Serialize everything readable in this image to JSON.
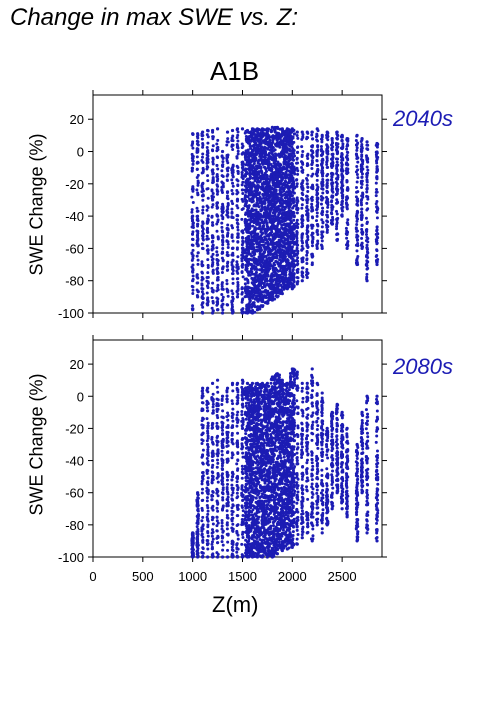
{
  "figure": {
    "title": "Change in max SWE vs. Z:",
    "scenario": "A1B",
    "xlabel": "Z(m)",
    "point_color": "#1c1cb4"
  },
  "chart_data": [
    {
      "type": "scatter",
      "period_label": "2040s",
      "ylabel": "SWE Change (%)",
      "xlim": [
        0,
        2900
      ],
      "ylim": [
        -100,
        35
      ],
      "yticks": [
        20,
        0,
        -20,
        -40,
        -60,
        -80,
        -100
      ],
      "xticks": [
        0,
        500,
        1000,
        1500,
        2000,
        2500
      ],
      "show_xtick_labels": false,
      "grid": false,
      "series": [
        {
          "points_summary": "dense vertical bands of points at each elevation; highest density 1550–2000 m",
          "x_range": [
            990,
            2900
          ],
          "y_range": [
            -100,
            15
          ],
          "points": [
            [
              1000,
              -98
            ],
            [
              1000,
              -80
            ],
            [
              1000,
              -40
            ],
            [
              1000,
              11
            ],
            [
              1050,
              -90
            ],
            [
              1050,
              -45
            ],
            [
              1050,
              11
            ],
            [
              1100,
              -100
            ],
            [
              1100,
              -60
            ],
            [
              1100,
              -20
            ],
            [
              1100,
              12
            ],
            [
              1150,
              -95
            ],
            [
              1150,
              -50
            ],
            [
              1150,
              0
            ],
            [
              1150,
              13
            ],
            [
              1200,
              -100
            ],
            [
              1200,
              -70
            ],
            [
              1200,
              -30
            ],
            [
              1200,
              13
            ],
            [
              1250,
              -98
            ],
            [
              1250,
              -40
            ],
            [
              1250,
              14
            ],
            [
              1300,
              -100
            ],
            [
              1300,
              -55
            ],
            [
              1300,
              0
            ],
            [
              1350,
              -95
            ],
            [
              1350,
              -25
            ],
            [
              1350,
              12
            ],
            [
              1400,
              -100
            ],
            [
              1400,
              -60
            ],
            [
              1400,
              -10
            ],
            [
              1400,
              13
            ],
            [
              1450,
              -90
            ],
            [
              1450,
              -30
            ],
            [
              1450,
              14
            ],
            [
              1500,
              -100
            ],
            [
              1500,
              -60
            ],
            [
              1500,
              -10
            ],
            [
              1500,
              14
            ],
            [
              1550,
              -100
            ],
            [
              1550,
              -50
            ],
            [
              1550,
              13
            ],
            [
              1600,
              -100
            ],
            [
              1600,
              -40
            ],
            [
              1600,
              14
            ],
            [
              1650,
              -98
            ],
            [
              1650,
              -30
            ],
            [
              1650,
              14
            ],
            [
              1700,
              -96
            ],
            [
              1700,
              -20
            ],
            [
              1700,
              14
            ],
            [
              1750,
              -94
            ],
            [
              1750,
              -30
            ],
            [
              1750,
              14
            ],
            [
              1800,
              -92
            ],
            [
              1800,
              -40
            ],
            [
              1800,
              15
            ],
            [
              1850,
              -90
            ],
            [
              1850,
              -35
            ],
            [
              1850,
              15
            ],
            [
              1900,
              -88
            ],
            [
              1900,
              -30
            ],
            [
              1900,
              14
            ],
            [
              1950,
              -85
            ],
            [
              1950,
              -25
            ],
            [
              1950,
              14
            ],
            [
              2000,
              -85
            ],
            [
              2000,
              -20
            ],
            [
              2000,
              14
            ],
            [
              2050,
              -82
            ],
            [
              2050,
              -30
            ],
            [
              2050,
              12
            ],
            [
              2100,
              -80
            ],
            [
              2100,
              -40
            ],
            [
              2100,
              12
            ],
            [
              2150,
              -78
            ],
            [
              2150,
              -20
            ],
            [
              2150,
              12
            ],
            [
              2200,
              -70
            ],
            [
              2200,
              -30
            ],
            [
              2200,
              12
            ],
            [
              2250,
              -60
            ],
            [
              2250,
              0
            ],
            [
              2250,
              14
            ],
            [
              2300,
              -60
            ],
            [
              2300,
              -20
            ],
            [
              2300,
              10
            ],
            [
              2350,
              -50
            ],
            [
              2350,
              12
            ],
            [
              2400,
              -45
            ],
            [
              2400,
              8
            ],
            [
              2450,
              -55
            ],
            [
              2450,
              12
            ],
            [
              2500,
              -40
            ],
            [
              2500,
              10
            ],
            [
              2550,
              -60
            ],
            [
              2550,
              8
            ],
            [
              2650,
              -70
            ],
            [
              2650,
              10
            ],
            [
              2700,
              -60
            ],
            [
              2700,
              8
            ],
            [
              2750,
              -80
            ],
            [
              2750,
              6
            ],
            [
              2850,
              -70
            ],
            [
              2850,
              5
            ]
          ]
        }
      ]
    },
    {
      "type": "scatter",
      "period_label": "2080s",
      "ylabel": "SWE Change (%)",
      "xlim": [
        0,
        2900
      ],
      "ylim": [
        -100,
        35
      ],
      "yticks": [
        20,
        0,
        -20,
        -40,
        -60,
        -80,
        -100
      ],
      "xticks": [
        0,
        500,
        1000,
        1500,
        2000,
        2500
      ],
      "xtick_labels": [
        "0",
        "500",
        "1000",
        "1500",
        "2000",
        "2500"
      ],
      "show_xtick_labels": true,
      "grid": false,
      "series": [
        {
          "points_summary": "dense vertical bands of points; most values strongly negative, densest 1550–2000 m",
          "x_range": [
            990,
            2900
          ],
          "y_range": [
            -100,
            18
          ],
          "points": [
            [
              1000,
              -100
            ],
            [
              1000,
              -85
            ],
            [
              1050,
              -100
            ],
            [
              1050,
              -60
            ],
            [
              1100,
              -100
            ],
            [
              1100,
              -50
            ],
            [
              1100,
              5
            ],
            [
              1150,
              -100
            ],
            [
              1150,
              -30
            ],
            [
              1150,
              5
            ],
            [
              1200,
              -100
            ],
            [
              1200,
              -40
            ],
            [
              1200,
              8
            ],
            [
              1250,
              -100
            ],
            [
              1250,
              -20
            ],
            [
              1250,
              10
            ],
            [
              1300,
              -100
            ],
            [
              1300,
              -60
            ],
            [
              1300,
              0
            ],
            [
              1350,
              -100
            ],
            [
              1350,
              -35
            ],
            [
              1350,
              5
            ],
            [
              1400,
              -100
            ],
            [
              1400,
              -50
            ],
            [
              1400,
              8
            ],
            [
              1450,
              -100
            ],
            [
              1450,
              -30
            ],
            [
              1450,
              8
            ],
            [
              1500,
              -100
            ],
            [
              1500,
              -20
            ],
            [
              1500,
              10
            ],
            [
              1550,
              -100
            ],
            [
              1550,
              -40
            ],
            [
              1550,
              8
            ],
            [
              1600,
              -100
            ],
            [
              1600,
              -30
            ],
            [
              1600,
              8
            ],
            [
              1650,
              -100
            ],
            [
              1650,
              -20
            ],
            [
              1650,
              8
            ],
            [
              1700,
              -100
            ],
            [
              1700,
              -15
            ],
            [
              1700,
              8
            ],
            [
              1750,
              -100
            ],
            [
              1750,
              -25
            ],
            [
              1750,
              8
            ],
            [
              1800,
              -100
            ],
            [
              1800,
              -30
            ],
            [
              1800,
              12
            ],
            [
              1850,
              -98
            ],
            [
              1850,
              -20
            ],
            [
              1850,
              14
            ],
            [
              1900,
              -96
            ],
            [
              1900,
              -30
            ],
            [
              1900,
              10
            ],
            [
              1950,
              -95
            ],
            [
              1950,
              -25
            ],
            [
              1950,
              8
            ],
            [
              2000,
              -94
            ],
            [
              2000,
              -20
            ],
            [
              2000,
              17
            ],
            [
              2050,
              -92
            ],
            [
              2050,
              -40
            ],
            [
              2050,
              15
            ],
            [
              2100,
              -88
            ],
            [
              2100,
              -35
            ],
            [
              2100,
              8
            ],
            [
              2150,
              -85
            ],
            [
              2150,
              -30
            ],
            [
              2150,
              8
            ],
            [
              2200,
              -90
            ],
            [
              2200,
              -20
            ],
            [
              2200,
              17
            ],
            [
              2250,
              -80
            ],
            [
              2250,
              -30
            ],
            [
              2250,
              8
            ],
            [
              2300,
              -85
            ],
            [
              2300,
              -40
            ],
            [
              2300,
              2
            ],
            [
              2350,
              -80
            ],
            [
              2350,
              -20
            ],
            [
              2400,
              -70
            ],
            [
              2400,
              -10
            ],
            [
              2450,
              -60
            ],
            [
              2450,
              -5
            ],
            [
              2500,
              -70
            ],
            [
              2500,
              -10
            ],
            [
              2550,
              -75
            ],
            [
              2550,
              -20
            ],
            [
              2650,
              -90
            ],
            [
              2650,
              -30
            ],
            [
              2700,
              -60
            ],
            [
              2700,
              -10
            ],
            [
              2750,
              -85
            ],
            [
              2750,
              0
            ],
            [
              2850,
              -90
            ],
            [
              2850,
              0
            ]
          ]
        }
      ]
    }
  ]
}
